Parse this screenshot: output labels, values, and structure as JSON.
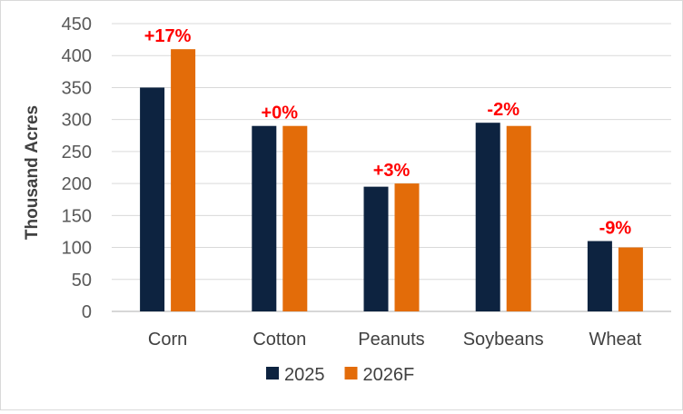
{
  "chart_data": {
    "type": "bar",
    "ylabel": "Thousand Acres",
    "ylim": [
      0,
      450
    ],
    "yticks": [
      0,
      50,
      100,
      150,
      200,
      250,
      300,
      350,
      400,
      450
    ],
    "grid": true,
    "legend_position": "bottom",
    "categories": [
      "Corn",
      "Cotton",
      "Peanuts",
      "Soybeans",
      "Wheat"
    ],
    "series": [
      {
        "name": "2025",
        "color": "#0d2340",
        "values": [
          350,
          290,
          195,
          295,
          110
        ]
      },
      {
        "name": "2026F",
        "color": "#e36c09",
        "values": [
          410,
          290,
          200,
          290,
          100
        ]
      }
    ],
    "annotations": [
      "+17%",
      "+0%",
      "+3%",
      "-2%",
      "-9%"
    ],
    "annotation_color": "#ff0000"
  }
}
